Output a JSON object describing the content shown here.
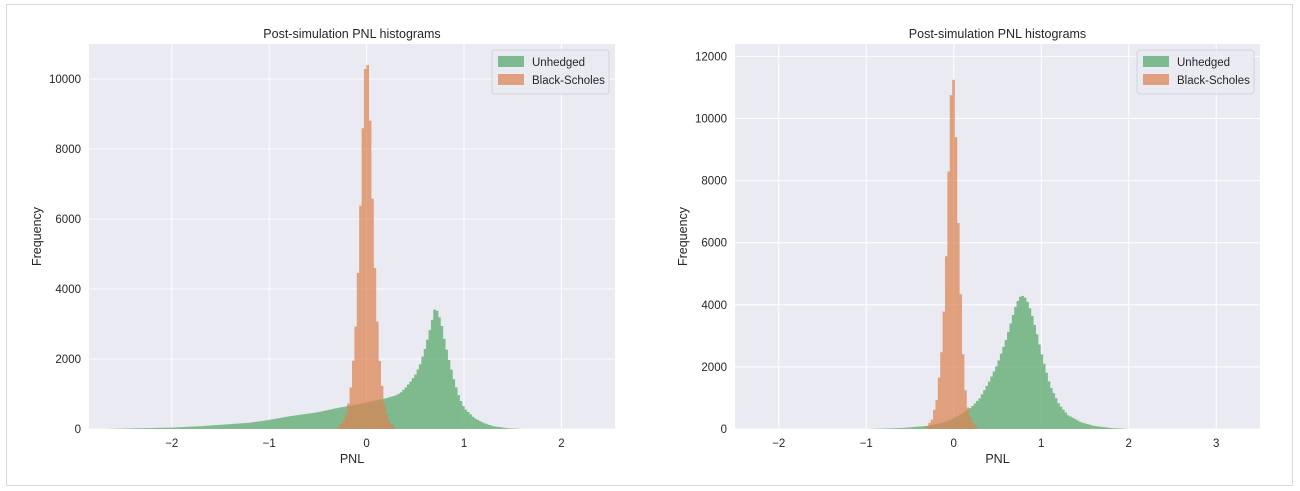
{
  "colors": {
    "axes_bg": "#eaeaf2",
    "grid": "#ffffff",
    "unhedged": "#55a868",
    "black_scholes": "#dd8452",
    "text": "#262626"
  },
  "chart_data": [
    {
      "type": "histogram",
      "title": "Post-simulation PNL histograms",
      "xlabel": "PNL",
      "ylabel": "Frequency",
      "xlim": [
        -2.85,
        2.55
      ],
      "ylim": [
        0,
        11000
      ],
      "xticks": [
        -2,
        -1,
        0,
        1,
        2
      ],
      "xtick_labels": [
        "−2",
        "−1",
        "0",
        "1",
        "2"
      ],
      "yticks": [
        0,
        2000,
        4000,
        6000,
        8000,
        10000
      ],
      "ytick_labels": [
        "0",
        "2000",
        "4000",
        "6000",
        "8000",
        "10000"
      ],
      "grid": true,
      "legend_position": "top-right",
      "series": [
        {
          "name": "Unhedged",
          "color": "#55a868",
          "x": [
            -2.7,
            -2.0,
            -1.7,
            -1.5,
            -1.2,
            -1.0,
            -0.8,
            -0.5,
            -0.3,
            -0.1,
            0.0,
            0.1,
            0.2,
            0.3,
            0.35,
            0.4,
            0.45,
            0.5,
            0.55,
            0.6,
            0.65,
            0.7,
            0.73,
            0.77,
            0.8,
            0.85,
            0.9,
            0.95,
            1.0,
            1.1,
            1.2,
            1.3,
            1.45,
            1.6
          ],
          "y": [
            0,
            40,
            80,
            120,
            180,
            260,
            360,
            480,
            600,
            700,
            760,
            820,
            880,
            960,
            1040,
            1180,
            1350,
            1550,
            1850,
            2300,
            2850,
            3450,
            3350,
            2950,
            2500,
            1900,
            1350,
            900,
            600,
            320,
            170,
            80,
            20,
            0
          ]
        },
        {
          "name": "Black-Scholes",
          "color": "#dd8452",
          "x": [
            -0.3,
            -0.22,
            -0.17,
            -0.12,
            -0.08,
            -0.05,
            -0.03,
            -0.01,
            0.01,
            0.03,
            0.05,
            0.08,
            0.12,
            0.17,
            0.22,
            0.3
          ],
          "y": [
            0,
            300,
            950,
            2500,
            5000,
            7600,
            9500,
            10550,
            10400,
            9200,
            7300,
            4800,
            2300,
            850,
            250,
            0
          ]
        }
      ]
    },
    {
      "type": "histogram",
      "title": "Post-simulation PNL histograms",
      "xlabel": "PNL",
      "ylabel": "Frequency",
      "xlim": [
        -2.5,
        3.5
      ],
      "ylim": [
        0,
        12400
      ],
      "xticks": [
        -2,
        -1,
        0,
        1,
        2,
        3
      ],
      "xtick_labels": [
        "−2",
        "−1",
        "0",
        "1",
        "2",
        "3"
      ],
      "yticks": [
        0,
        2000,
        4000,
        6000,
        8000,
        10000,
        12000
      ],
      "ytick_labels": [
        "0",
        "2000",
        "4000",
        "6000",
        "8000",
        "10000",
        "12000"
      ],
      "grid": true,
      "legend_position": "top-right",
      "series": [
        {
          "name": "Unhedged",
          "color": "#55a868",
          "x": [
            -1.0,
            -0.6,
            -0.3,
            -0.1,
            0.0,
            0.1,
            0.2,
            0.3,
            0.4,
            0.5,
            0.6,
            0.65,
            0.7,
            0.75,
            0.8,
            0.85,
            0.9,
            0.95,
            1.0,
            1.05,
            1.1,
            1.2,
            1.3,
            1.45,
            1.6,
            1.8,
            2.0
          ],
          "y": [
            0,
            30,
            100,
            220,
            350,
            500,
            700,
            1000,
            1500,
            2100,
            2900,
            3400,
            3900,
            4250,
            4300,
            4050,
            3600,
            3050,
            2450,
            1900,
            1400,
            800,
            450,
            220,
            100,
            30,
            0
          ]
        },
        {
          "name": "Black-Scholes",
          "color": "#dd8452",
          "x": [
            -0.33,
            -0.25,
            -0.19,
            -0.13,
            -0.09,
            -0.06,
            -0.04,
            -0.02,
            0.0,
            0.02,
            0.04,
            0.07,
            0.1,
            0.14,
            0.2,
            0.28
          ],
          "y": [
            0,
            300,
            1000,
            2800,
            5200,
            8200,
            10300,
            11400,
            11200,
            9700,
            7500,
            4900,
            2600,
            900,
            250,
            0
          ]
        }
      ]
    }
  ]
}
